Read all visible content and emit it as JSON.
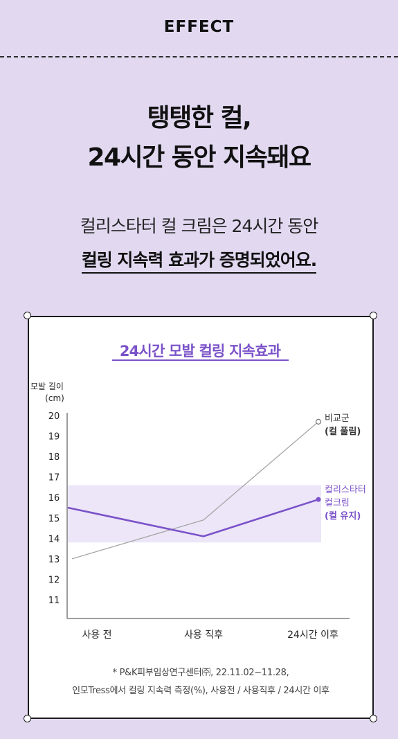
{
  "header": {
    "title": "EFFECT"
  },
  "headline": {
    "line1": "탱탱한 컬,",
    "line2": "24시간 동안 지속돼요"
  },
  "intro": {
    "line1": "컬리스타터 컬 크림은 24시간 동안",
    "line2": "컬링 지속력 효과가 증명되었어요."
  },
  "colors": {
    "background": "#e2d9f1",
    "accent": "#7b52c9",
    "band": "#ece6f8",
    "comparison": "#a6a6a6"
  },
  "chart_data": {
    "type": "line",
    "title": "24시간 모발 컬링 지속효과",
    "ylabel": "모발 길이",
    "yunit": "(cm)",
    "categories": [
      "사용 전",
      "사용 직후",
      "24시간 이후"
    ],
    "ylim": [
      11,
      20
    ],
    "yticks": [
      20,
      19,
      18,
      17,
      16,
      15,
      14,
      13,
      12,
      11
    ],
    "series": [
      {
        "name_lines": [
          "비교군",
          "(컬 풀림)"
        ],
        "values": [
          13.0,
          14.9,
          19.7
        ],
        "color": "#a6a6a6"
      },
      {
        "name_lines": [
          "컬리스타터",
          "컬크림",
          "(컬 유지)"
        ],
        "values": [
          15.5,
          14.1,
          15.9
        ],
        "color": "#7b52c9"
      }
    ],
    "band": [
      13.8,
      16.6
    ]
  },
  "footnote": {
    "line1": "* P&K피부임상연구센터㈜, 22.11.02~11.28,",
    "line2": "인모Tress에서 컬링 지속력 측정(%), 사용전 / 사용직후 / 24시간 이후"
  }
}
